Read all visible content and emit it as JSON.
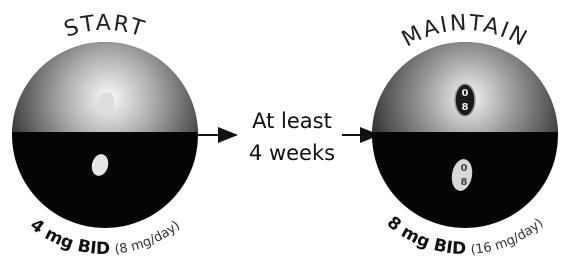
{
  "start": {
    "label": "START",
    "dose": "4 mg BID",
    "daily": "(8 mg/day)"
  },
  "transition": {
    "line1": "At least",
    "line2": "4 weeks"
  },
  "maintain": {
    "label": "MAINTAIN",
    "dose": "8 mg BID",
    "daily": "(16 mg/day)",
    "imprint": [
      "0",
      "8"
    ]
  }
}
